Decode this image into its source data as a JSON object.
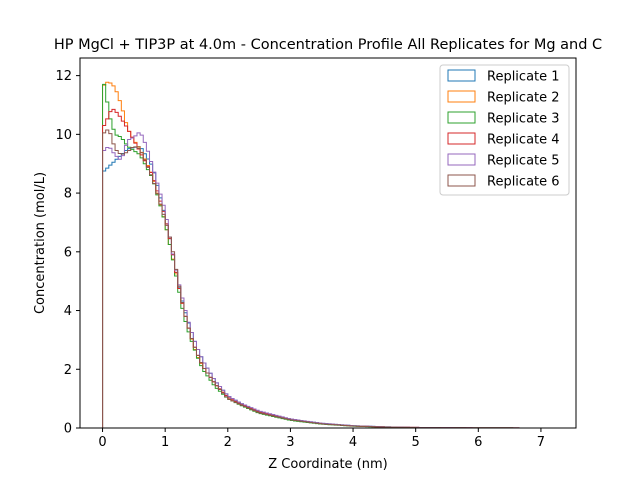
{
  "chart_data": {
    "type": "line",
    "title": "HP MgCl + TIP3P at 4.0m - Concentration Profile All Replicates for Mg and C",
    "xlabel": "Z Coordinate (nm)",
    "ylabel": "Concentration (mol/L)",
    "xlim": [
      -0.36,
      7.56
    ],
    "ylim": [
      0,
      12.6
    ],
    "xticks": [
      {
        "value": 0,
        "label": "0"
      },
      {
        "value": 1,
        "label": "1"
      },
      {
        "value": 2,
        "label": "2"
      },
      {
        "value": 3,
        "label": "3"
      },
      {
        "value": 4,
        "label": "4"
      },
      {
        "value": 5,
        "label": "5"
      },
      {
        "value": 6,
        "label": "6"
      },
      {
        "value": 7,
        "label": "7"
      }
    ],
    "yticks": [
      {
        "value": 0,
        "label": "0"
      },
      {
        "value": 2,
        "label": "2"
      },
      {
        "value": 4,
        "label": "4"
      },
      {
        "value": 6,
        "label": "6"
      },
      {
        "value": 8,
        "label": "8"
      },
      {
        "value": 10,
        "label": "10"
      },
      {
        "value": 12,
        "label": "12"
      }
    ],
    "grid": false,
    "legend_position": "top-right",
    "bin_width": 0.05,
    "series": [
      {
        "name": "Replicate 1",
        "color": "#1f77b4",
        "points": [
          [
            0,
            8.7
          ],
          [
            0.1,
            8.9
          ],
          [
            0.2,
            9.1
          ],
          [
            0.3,
            9.3
          ],
          [
            0.4,
            9.5
          ],
          [
            0.6,
            9.6
          ],
          [
            0.8,
            8.9
          ],
          [
            1.0,
            7.2
          ],
          [
            1.1,
            6.2
          ],
          [
            1.2,
            5.0
          ],
          [
            1.3,
            4.1
          ],
          [
            1.4,
            3.4
          ],
          [
            1.5,
            2.8
          ],
          [
            1.6,
            2.3
          ],
          [
            1.8,
            1.6
          ],
          [
            2.0,
            1.1
          ],
          [
            2.2,
            0.85
          ],
          [
            2.5,
            0.55
          ],
          [
            3.0,
            0.3
          ],
          [
            3.5,
            0.16
          ],
          [
            4.0,
            0.08
          ],
          [
            4.5,
            0.04
          ],
          [
            5.0,
            0.02
          ],
          [
            6.0,
            0.005
          ],
          [
            7.2,
            0.0
          ]
        ]
      },
      {
        "name": "Replicate 2",
        "color": "#ff7f0e",
        "points": [
          [
            0,
            11.6
          ],
          [
            0.05,
            11.75
          ],
          [
            0.1,
            11.8
          ],
          [
            0.2,
            11.6
          ],
          [
            0.3,
            11.0
          ],
          [
            0.4,
            10.2
          ],
          [
            0.5,
            9.8
          ],
          [
            0.6,
            9.5
          ],
          [
            0.8,
            8.6
          ],
          [
            1.0,
            7.0
          ],
          [
            1.1,
            6.0
          ],
          [
            1.2,
            5.0
          ],
          [
            1.3,
            4.0
          ],
          [
            1.4,
            3.2
          ],
          [
            1.5,
            2.5
          ],
          [
            1.6,
            2.1
          ],
          [
            1.8,
            1.5
          ],
          [
            2.0,
            1.05
          ],
          [
            2.2,
            0.8
          ],
          [
            2.5,
            0.52
          ],
          [
            3.0,
            0.28
          ],
          [
            3.5,
            0.15
          ],
          [
            4.0,
            0.07
          ],
          [
            4.5,
            0.035
          ],
          [
            5.0,
            0.02
          ],
          [
            6.0,
            0.005
          ],
          [
            7.2,
            0.0
          ]
        ]
      },
      {
        "name": "Replicate 3",
        "color": "#2ca02c",
        "points": [
          [
            0,
            11.9
          ],
          [
            0.05,
            11.5
          ],
          [
            0.1,
            10.7
          ],
          [
            0.2,
            10.0
          ],
          [
            0.3,
            9.9
          ],
          [
            0.4,
            9.6
          ],
          [
            0.6,
            9.3
          ],
          [
            0.8,
            8.5
          ],
          [
            1.0,
            7.0
          ],
          [
            1.1,
            6.0
          ],
          [
            1.2,
            4.9
          ],
          [
            1.3,
            3.8
          ],
          [
            1.4,
            3.1
          ],
          [
            1.5,
            2.5
          ],
          [
            1.6,
            2.0
          ],
          [
            1.8,
            1.4
          ],
          [
            2.0,
            1.0
          ],
          [
            2.2,
            0.78
          ],
          [
            2.5,
            0.5
          ],
          [
            3.0,
            0.26
          ],
          [
            3.5,
            0.13
          ],
          [
            4.0,
            0.06
          ],
          [
            4.5,
            0.03
          ],
          [
            5.0,
            0.015
          ],
          [
            6.0,
            0.004
          ],
          [
            7.2,
            0.0
          ]
        ]
      },
      {
        "name": "Replicate 4",
        "color": "#d62728",
        "points": [
          [
            0,
            10.2
          ],
          [
            0.05,
            10.4
          ],
          [
            0.15,
            10.9
          ],
          [
            0.25,
            10.7
          ],
          [
            0.4,
            10.2
          ],
          [
            0.5,
            9.8
          ],
          [
            0.6,
            9.4
          ],
          [
            0.8,
            8.6
          ],
          [
            1.0,
            7.2
          ],
          [
            1.1,
            6.2
          ],
          [
            1.2,
            5.0
          ],
          [
            1.3,
            4.0
          ],
          [
            1.4,
            3.2
          ],
          [
            1.5,
            2.6
          ],
          [
            1.6,
            2.1
          ],
          [
            1.8,
            1.5
          ],
          [
            2.0,
            1.05
          ],
          [
            2.2,
            0.82
          ],
          [
            2.5,
            0.55
          ],
          [
            3.0,
            0.3
          ],
          [
            3.5,
            0.15
          ],
          [
            4.0,
            0.07
          ],
          [
            4.5,
            0.035
          ],
          [
            5.0,
            0.02
          ],
          [
            6.0,
            0.005
          ],
          [
            7.2,
            0.0
          ]
        ]
      },
      {
        "name": "Replicate 5",
        "color": "#9467bd",
        "points": [
          [
            0,
            9.4
          ],
          [
            0.1,
            9.6
          ],
          [
            0.2,
            9.3
          ],
          [
            0.3,
            9.1
          ],
          [
            0.4,
            9.8
          ],
          [
            0.5,
            9.9
          ],
          [
            0.6,
            10.1
          ],
          [
            0.7,
            9.6
          ],
          [
            0.8,
            8.9
          ],
          [
            1.0,
            7.4
          ],
          [
            1.1,
            6.2
          ],
          [
            1.2,
            5.1
          ],
          [
            1.3,
            4.2
          ],
          [
            1.4,
            3.4
          ],
          [
            1.5,
            2.8
          ],
          [
            1.6,
            2.3
          ],
          [
            1.8,
            1.6
          ],
          [
            2.0,
            1.1
          ],
          [
            2.2,
            0.85
          ],
          [
            2.5,
            0.58
          ],
          [
            3.0,
            0.31
          ],
          [
            3.5,
            0.16
          ],
          [
            4.0,
            0.08
          ],
          [
            4.5,
            0.04
          ],
          [
            5.0,
            0.02
          ],
          [
            6.0,
            0.005
          ],
          [
            7.2,
            0.0
          ]
        ]
      },
      {
        "name": "Replicate 6",
        "color": "#8c564b",
        "points": [
          [
            0,
            10.0
          ],
          [
            0.1,
            10.2
          ],
          [
            0.2,
            9.5
          ],
          [
            0.3,
            9.3
          ],
          [
            0.4,
            9.4
          ],
          [
            0.5,
            9.6
          ],
          [
            0.6,
            9.5
          ],
          [
            0.8,
            8.5
          ],
          [
            1.0,
            7.1
          ],
          [
            1.1,
            6.3
          ],
          [
            1.2,
            5.1
          ],
          [
            1.3,
            4.0
          ],
          [
            1.4,
            3.2
          ],
          [
            1.5,
            2.6
          ],
          [
            1.6,
            2.1
          ],
          [
            1.8,
            1.5
          ],
          [
            2.0,
            1.0
          ],
          [
            2.2,
            0.8
          ],
          [
            2.5,
            0.52
          ],
          [
            3.0,
            0.28
          ],
          [
            3.5,
            0.14
          ],
          [
            4.0,
            0.07
          ],
          [
            4.5,
            0.035
          ],
          [
            5.0,
            0.015
          ],
          [
            6.0,
            0.004
          ],
          [
            7.2,
            0.0
          ]
        ]
      }
    ]
  }
}
